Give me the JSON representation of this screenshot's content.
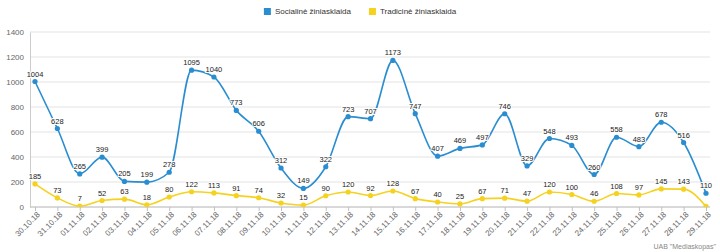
{
  "chart_data": {
    "type": "line",
    "credit": "UAB \"Mediaskopas\"",
    "categories": [
      "30.10.18",
      "31.10.18",
      "01.11.18",
      "02.11.18",
      "03.11.18",
      "04.11.18",
      "05.11.18",
      "06.11.18",
      "07.11.18",
      "08.11.18",
      "09.11.18",
      "10.11.18",
      "11.11.18",
      "12.11.18",
      "13.11.18",
      "14.11.18",
      "15.11.18",
      "16.11.18",
      "17.11.18",
      "18.11.18",
      "19.11.18",
      "20.11.18",
      "21.11.18",
      "22.11.18",
      "23.11.18",
      "24.11.18",
      "25.11.18",
      "26.11.18",
      "27.11.18",
      "28.11.18",
      "29.11.18"
    ],
    "series": [
      {
        "name": "Socialinė žiniasklaida",
        "color": "#2a8dd0",
        "marker": "circle",
        "values": [
          1004,
          628,
          265,
          399,
          205,
          199,
          278,
          1095,
          1040,
          773,
          606,
          312,
          149,
          322,
          723,
          707,
          1173,
          747,
          407,
          469,
          497,
          746,
          329,
          548,
          493,
          260,
          558,
          483,
          678,
          516,
          110
        ]
      },
      {
        "name": "Tradicinė žiniasklaida",
        "color": "#f5d21f",
        "marker": "circle",
        "values": [
          185,
          73,
          7,
          52,
          63,
          18,
          80,
          122,
          113,
          91,
          74,
          32,
          15,
          90,
          120,
          92,
          128,
          67,
          40,
          25,
          67,
          71,
          47,
          120,
          100,
          46,
          108,
          97,
          145,
          143,
          5
        ],
        "value_labels": [
          "185",
          "73",
          "7",
          "52",
          "63",
          "18",
          "80",
          "122",
          "113",
          "91",
          "74",
          "32",
          "15",
          "90",
          "120",
          "92",
          "128",
          "67",
          "40",
          "25",
          "67",
          "71",
          "47",
          "120",
          "100",
          "46",
          "108",
          "97",
          "145",
          "143",
          null
        ]
      }
    ],
    "ylim": [
      0,
      1400
    ],
    "yticks": [
      0,
      200,
      400,
      600,
      800,
      1000,
      1200,
      1400
    ],
    "grid": true,
    "legend": "top",
    "data_labels": true
  }
}
